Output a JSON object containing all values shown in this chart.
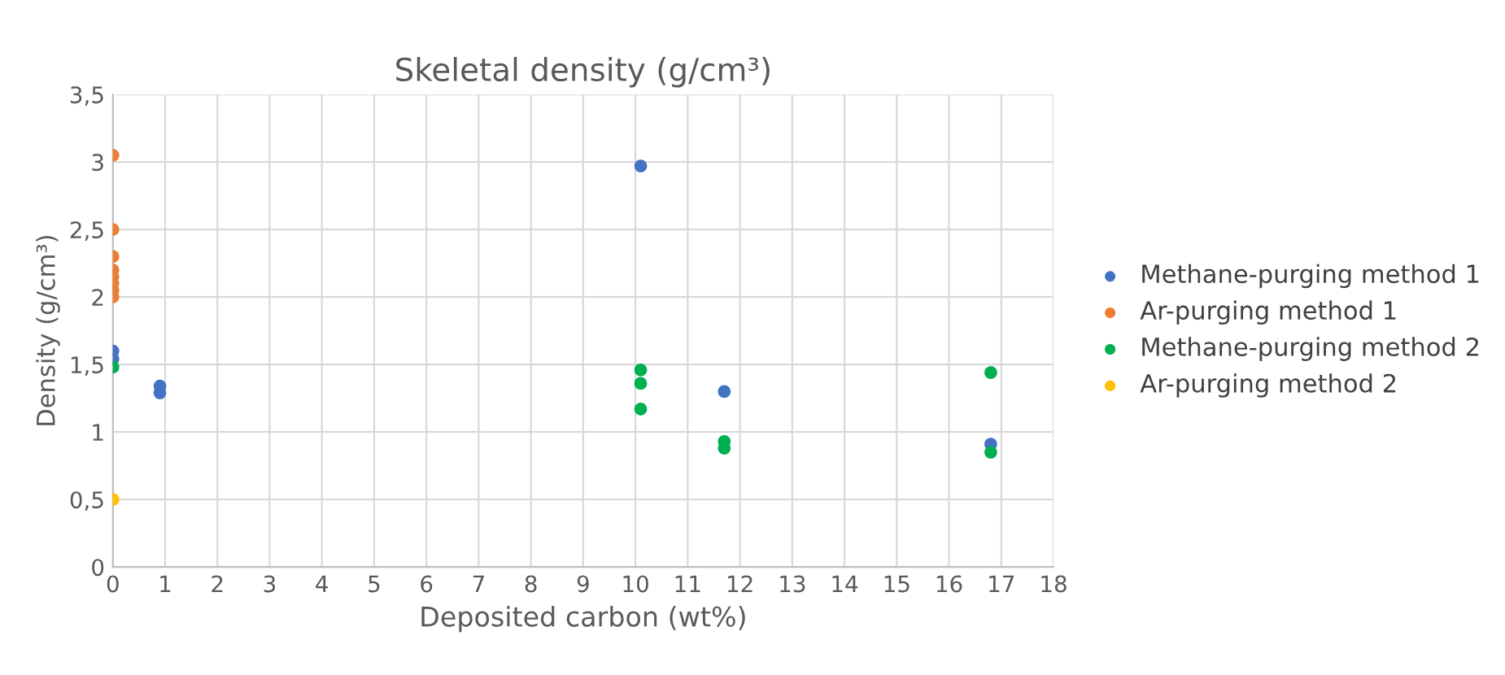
{
  "chart_data": {
    "type": "scatter",
    "title": "Skeletal density (g/cm³)",
    "xlabel": "Deposited carbon (wt%)",
    "ylabel": "Density (g/cm³)",
    "series": [
      {
        "name": "Methane-purging method 1",
        "color": "#4472c4",
        "x": [
          0,
          0,
          0.9,
          0.9,
          10.1,
          11.7,
          16.8
        ],
        "values": [
          1.6,
          1.54,
          1.34,
          1.29,
          2.97,
          1.3,
          0.91
        ]
      },
      {
        "name": "Ar-purging method 1",
        "color": "#ed7d31",
        "x": [
          0,
          0,
          0,
          0,
          0,
          0,
          0,
          0
        ],
        "values": [
          3.05,
          2.5,
          2.3,
          2.2,
          2.15,
          2.1,
          2.05,
          2.0
        ]
      },
      {
        "name": "Methane-purging method 2",
        "color": "#00b050",
        "x": [
          0,
          10.1,
          10.1,
          10.1,
          11.7,
          11.7,
          16.8,
          16.8
        ],
        "values": [
          1.48,
          1.46,
          1.36,
          1.17,
          0.93,
          0.88,
          1.44,
          0.85
        ]
      },
      {
        "name": "Ar-purging method 2",
        "color": "#ffc000",
        "x": [
          0
        ],
        "values": [
          0.5
        ]
      }
    ],
    "xlim": [
      0,
      18
    ],
    "xticks": [
      0,
      1,
      2,
      3,
      4,
      5,
      6,
      7,
      8,
      9,
      10,
      11,
      12,
      13,
      14,
      15,
      16,
      17,
      18
    ],
    "ylim": [
      0,
      3.5
    ],
    "yticks": [
      0,
      {
        "value": 0.5,
        "label": "0,5"
      },
      1,
      {
        "value": 1.5,
        "label": "1,5"
      },
      2,
      {
        "value": 2.5,
        "label": "2,5"
      },
      3,
      {
        "value": 3.5,
        "label": "3,5"
      }
    ],
    "grid": true,
    "legend": "right",
    "marker": "circle"
  }
}
